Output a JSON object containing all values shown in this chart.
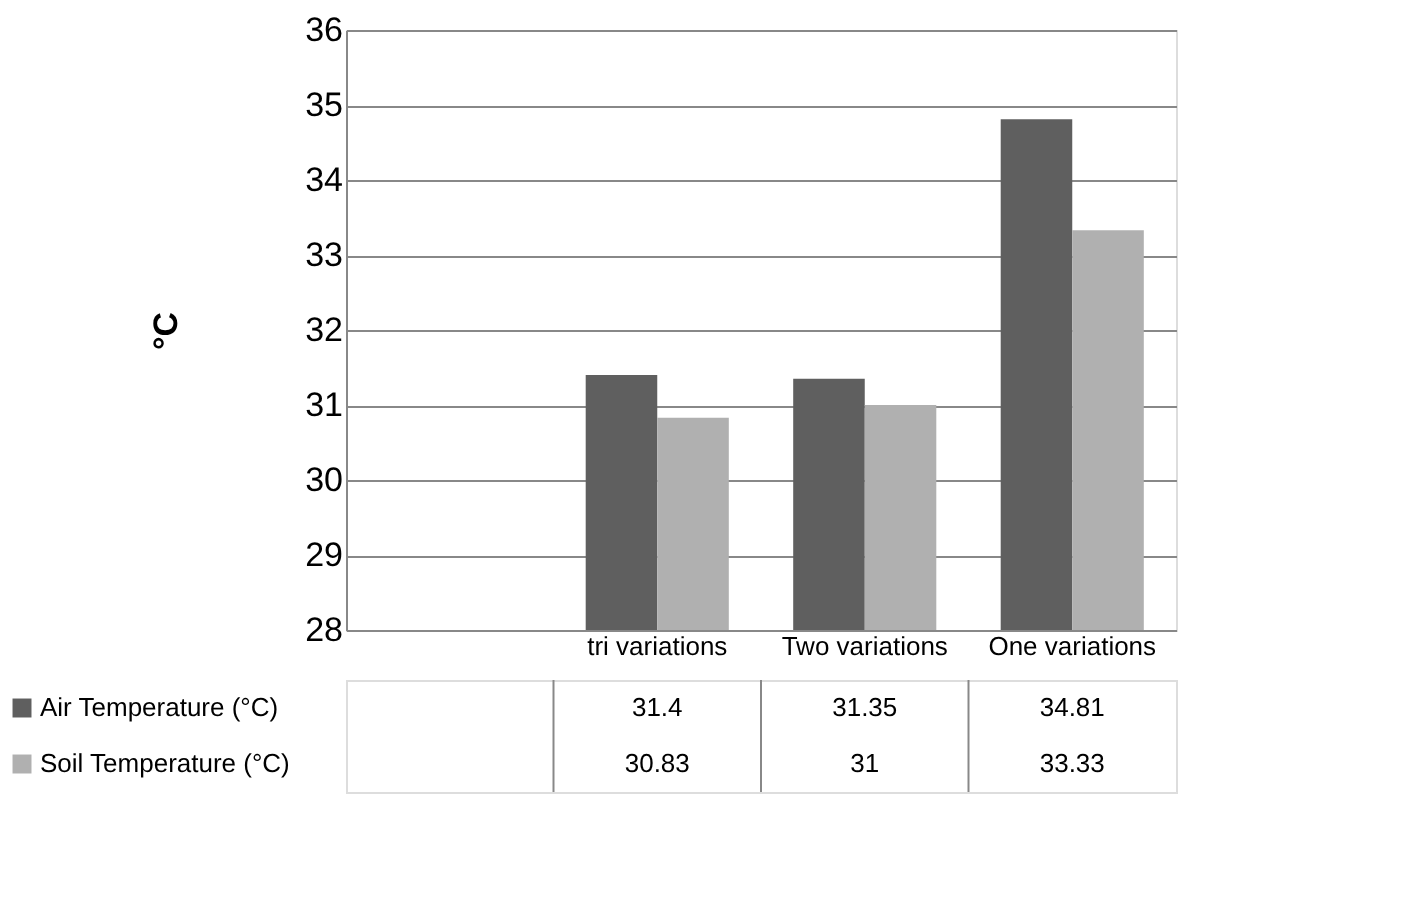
{
  "chart_data": {
    "type": "bar",
    "ylabel": "°C",
    "categories": [
      null,
      "tri variations",
      "Two variations",
      "One variations"
    ],
    "series": [
      {
        "name": "Air Temperature (°C)",
        "color": "#5f5f5f",
        "values": [
          null,
          31.4,
          31.35,
          34.81
        ]
      },
      {
        "name": "Soil Temperature (°C)",
        "color": "#b0b0b0",
        "values": [
          null,
          30.83,
          31,
          33.33
        ]
      }
    ],
    "ylim": [
      28,
      36
    ],
    "yticks": [
      28,
      29,
      30,
      31,
      32,
      33,
      34,
      35,
      36
    ],
    "grid": "y",
    "legend": "bottom",
    "data_labels": true
  }
}
